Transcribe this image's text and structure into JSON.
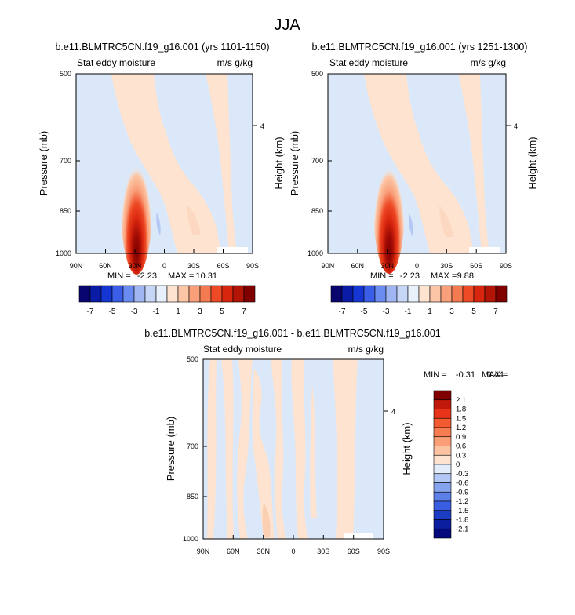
{
  "page_title": "JJA",
  "chart_data": [
    {
      "type": "heatmap",
      "title": "b.e11.BLMTRC5CN.f19_g16.001 (yrs 1101-1150)",
      "left_label": "Stat eddy moisture",
      "right_label": "m/s g/kg",
      "ylabel": "Pressure (mb)",
      "ylabel_right": "Height (km)",
      "x_ticks": [
        "90N",
        "60N",
        "30N",
        "0",
        "30S",
        "60S",
        "90S"
      ],
      "y_ticks": [
        "500",
        "700",
        "850",
        "1000"
      ],
      "y_right_ticks": [
        "4"
      ],
      "ylim": [
        1000,
        500
      ],
      "min_label": "MIN =",
      "min": "-2.23",
      "max_label": "MAX =",
      "max": "10.31",
      "field_peak_value": 10.31,
      "field_peak_location": {
        "lat": "30N",
        "pressure_mb": 950
      }
    },
    {
      "type": "heatmap",
      "title": "b.e11.BLMTRC5CN.f19_g16.001 (yrs 1251-1300)",
      "left_label": "Stat eddy moisture",
      "right_label": "m/s g/kg",
      "ylabel": "Pressure (mb)",
      "ylabel_right": "Height (km)",
      "x_ticks": [
        "90N",
        "60N",
        "30N",
        "0",
        "30S",
        "60S",
        "90S"
      ],
      "y_ticks": [
        "500",
        "700",
        "850",
        "1000"
      ],
      "y_right_ticks": [
        "4"
      ],
      "ylim": [
        1000,
        500
      ],
      "min_label": "MIN =",
      "min": "-2.23",
      "max_label": "MAX =",
      "max": "9.88",
      "field_peak_value": 9.88,
      "field_peak_location": {
        "lat": "30N",
        "pressure_mb": 950
      }
    },
    {
      "type": "heatmap",
      "title": "b.e11.BLMTRC5CN.f19_g16.001 - b.e11.BLMTRC5CN.f19_g16.001",
      "left_label": "Stat eddy moisture",
      "right_label": "m/s g/kg",
      "ylabel": "Pressure (mb)",
      "ylabel_right": "Height (km)",
      "x_ticks": [
        "90N",
        "60N",
        "30N",
        "0",
        "30S",
        "60S",
        "90S"
      ],
      "y_ticks": [
        "500",
        "700",
        "850",
        "1000"
      ],
      "y_right_ticks": [
        "4"
      ],
      "ylim": [
        1000,
        500
      ],
      "min_label": "MIN =",
      "min": "-0.31",
      "max_label": "MAX =",
      "max": "0.44"
    }
  ],
  "colorbar_top": {
    "labels": [
      "-7",
      "-5",
      "-3",
      "-1",
      "1",
      "3",
      "5",
      "7"
    ],
    "colors": [
      "#08066e",
      "#0a1ca6",
      "#1536d2",
      "#3a5ee8",
      "#6a8cf0",
      "#9fb6f2",
      "#c6d6f6",
      "#e8f0fb",
      "#fde3d0",
      "#fcc6a6",
      "#f9a07a",
      "#f47a52",
      "#ee4a26",
      "#d8260e",
      "#b21406",
      "#800000"
    ]
  },
  "colorbar_diff": {
    "labels": [
      "2.1",
      "1.8",
      "1.5",
      "1.2",
      "0.9",
      "0.6",
      "0.3",
      "0",
      "-0.3",
      "-0.6",
      "-0.9",
      "-1.2",
      "-1.5",
      "-1.8",
      "-2.1"
    ],
    "colors": [
      "#800000",
      "#c0180a",
      "#e83418",
      "#f45a30",
      "#f77c52",
      "#fa9e78",
      "#fcc3a2",
      "#fde3d0",
      "#e2ecfb",
      "#b3c8f4",
      "#86a4ee",
      "#5c80e8",
      "#3a5ee2",
      "#1c3cc4",
      "#0c1ea0",
      "#04087a"
    ]
  }
}
